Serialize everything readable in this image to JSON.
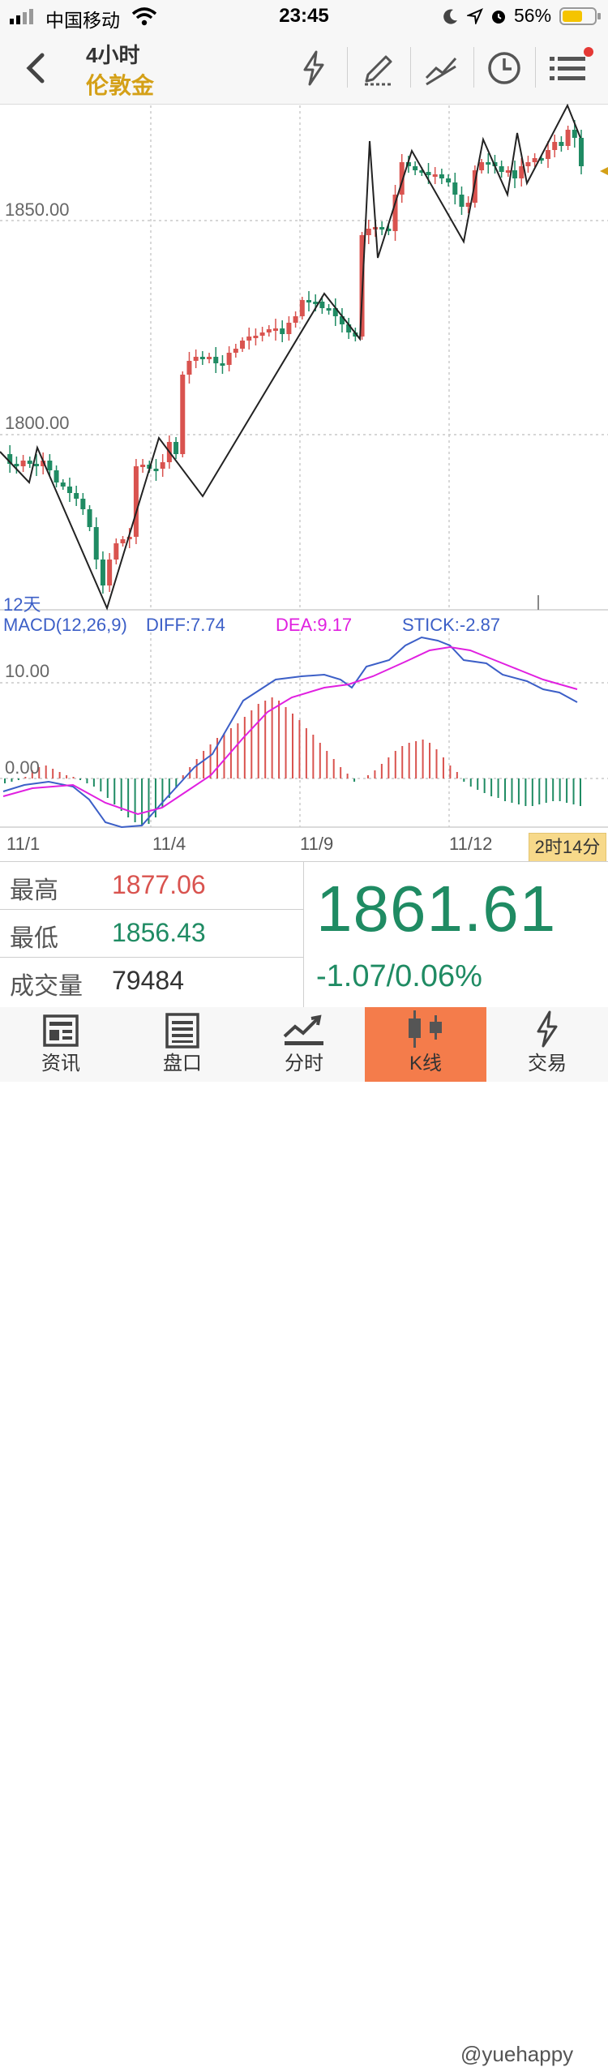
{
  "status_bar": {
    "carrier": "中国移动",
    "time": "23:45",
    "battery": "56%"
  },
  "header": {
    "period": "4小时",
    "instrument": "伦敦金",
    "accent_color": "#d4a017",
    "icons": [
      "back-icon",
      "flash-icon",
      "draw-icon",
      "trend-tool-icon",
      "clock-icon",
      "menu-icon"
    ]
  },
  "chart": {
    "price_levels": [
      "1850.00",
      "1800.00"
    ],
    "range_label": "12天",
    "macd": {
      "title": "MACD(12,26,9)",
      "diff": "DIFF:7.74",
      "dea": "DEA:9.17",
      "stick": "STICK:-2.87",
      "levels": [
        "10.00",
        "0.00"
      ]
    },
    "dates": [
      "11/1",
      "11/4",
      "11/9",
      "11/12"
    ],
    "countdown": "2时14分"
  },
  "stats": {
    "high_label": "最高",
    "high_value": "1877.06",
    "low_label": "最低",
    "low_value": "1856.43",
    "volume_label": "成交量",
    "volume_value": "79484",
    "price": "1861.61",
    "change": "-1.07/0.06%",
    "up_color": "#d9534f",
    "down_color": "#1f8b63"
  },
  "tabs": [
    {
      "label": "资讯",
      "icon": "news-icon"
    },
    {
      "label": "盘口",
      "icon": "orderbook-icon"
    },
    {
      "label": "分时",
      "icon": "timeshare-icon"
    },
    {
      "label": "K线",
      "icon": "candlestick-icon"
    },
    {
      "label": "交易",
      "icon": "trade-icon"
    }
  ],
  "watermark": "@yuehappy"
}
